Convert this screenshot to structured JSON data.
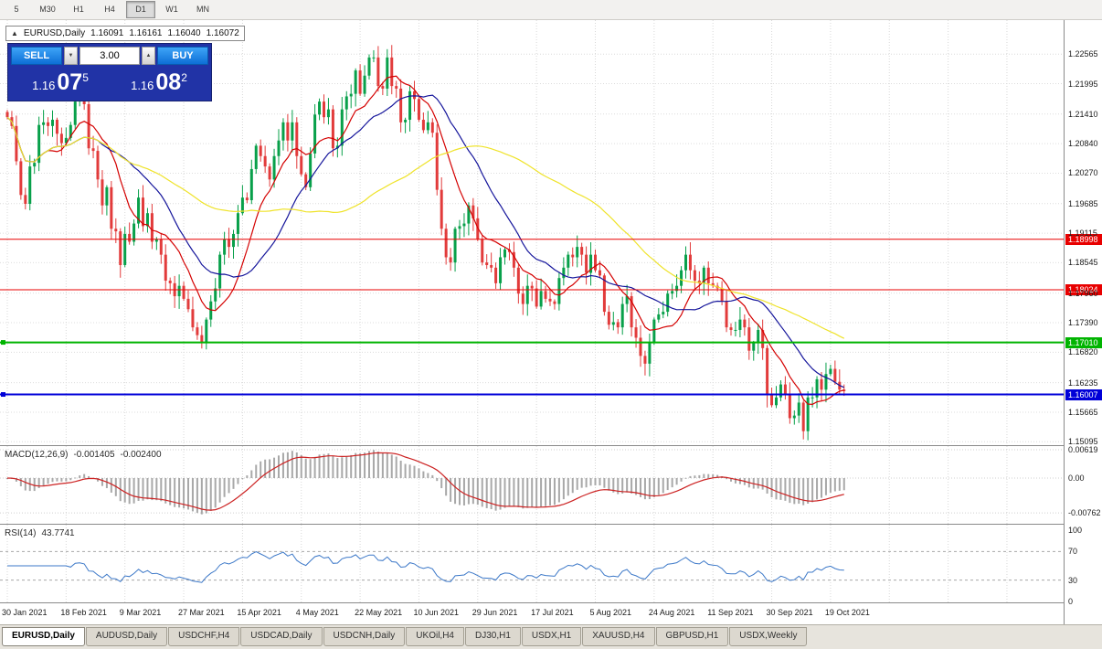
{
  "toolbar": {
    "timeframes": [
      "5",
      "M30",
      "H1",
      "H4",
      "D1",
      "W1",
      "MN"
    ],
    "active": "D1"
  },
  "chart_header": {
    "symbol_label": "EURUSD,Daily",
    "open": "1.16091",
    "high": "1.16161",
    "low": "1.16040",
    "close": "1.16072"
  },
  "icons": {
    "chart_collapse": "▲",
    "lot_down": "▼",
    "lot_up": "▲"
  },
  "trade_panel": {
    "sell_label": "SELL",
    "buy_label": "BUY",
    "lot_size": "3.00",
    "sell_price_prefix": "1.16",
    "sell_price_big": "07",
    "sell_price_sup": "5",
    "buy_price_prefix": "1.16",
    "buy_price_big": "08",
    "buy_price_sup": "2"
  },
  "price_axis": {
    "labels": [
      "1.22565",
      "1.21995",
      "1.21410",
      "1.20840",
      "1.20270",
      "1.19685",
      "1.19115",
      "1.18545",
      "1.17960",
      "1.17390",
      "1.16820",
      "1.16235",
      "1.15665",
      "1.15095"
    ]
  },
  "macd_panel": {
    "title": "MACD(12,26,9)",
    "value_main": "-0.001405",
    "value_signal": "-0.002400",
    "axis_labels": [
      "0.00619",
      "0.00",
      "-0.00762"
    ]
  },
  "rsi_panel": {
    "title": "RSI(14)",
    "value": "43.7741",
    "axis_labels": [
      "100",
      "70",
      "30",
      "0"
    ],
    "levels": [
      70,
      30
    ]
  },
  "date_axis": [
    "30 Jan 2021",
    "18 Feb 2021",
    "9 Mar 2021",
    "27 Mar 2021",
    "15 Apr 2021",
    "4 May 2021",
    "22 May 2021",
    "10 Jun 2021",
    "29 Jun 2021",
    "17 Jul 2021",
    "5 Aug 2021",
    "24 Aug 2021",
    "11 Sep 2021",
    "30 Sep 2021",
    "19 Oct 2021"
  ],
  "tabs": {
    "items": [
      "EURUSD,Daily",
      "AUDUSD,Daily",
      "USDCHF,H4",
      "USDCAD,Daily",
      "USDCNH,Daily",
      "UKOil,H4",
      "DJ30,H1",
      "USDX,H1",
      "XAUUSD,H4",
      "GBPUSD,H1",
      "USDX,Weekly"
    ],
    "active": "EURUSD,Daily"
  },
  "chart_data": {
    "type": "candlestick",
    "symbol": "EURUSD",
    "timeframe": "Daily",
    "title": "EURUSD,Daily 1.16091 1.16161 1.16040 1.16072",
    "ylim": [
      1.1503,
      1.2322
    ],
    "label_step_days": 13,
    "open_first": 1.2145,
    "closes": [
      1.2135,
      1.2118,
      1.205,
      1.1985,
      1.1968,
      1.204,
      1.2047,
      1.212,
      1.2125,
      1.2118,
      1.213,
      1.2103,
      1.2085,
      1.2095,
      1.212,
      1.2165,
      1.217,
      1.216,
      1.2075,
      1.207,
      1.2015,
      1.1965,
      1.2,
      1.192,
      1.1915,
      1.185,
      1.191,
      1.1895,
      1.193,
      1.198,
      1.1925,
      1.195,
      1.1895,
      1.19,
      1.187,
      1.182,
      1.1815,
      1.179,
      1.181,
      1.1785,
      1.1765,
      1.173,
      1.1715,
      1.17,
      1.1745,
      1.178,
      1.1805,
      1.187,
      1.19,
      1.1885,
      1.191,
      1.195,
      1.198,
      1.1975,
      1.2035,
      1.208,
      1.206,
      1.204,
      1.2015,
      1.206,
      1.209,
      1.2125,
      1.209,
      1.2125,
      1.206,
      1.2025,
      1.2,
      1.2065,
      1.214,
      1.2165,
      1.2135,
      1.215,
      1.2075,
      1.208,
      1.215,
      1.2175,
      1.218,
      1.2225,
      1.218,
      1.2215,
      1.225,
      1.225,
      1.2195,
      1.219,
      1.225,
      1.2195,
      1.219,
      1.2125,
      1.213,
      1.2185,
      1.217,
      1.213,
      1.211,
      1.2125,
      1.2105,
      1.1995,
      1.192,
      1.1865,
      1.1855,
      1.192,
      1.1925,
      1.193,
      1.1965,
      1.194,
      1.19,
      1.1855,
      1.185,
      1.1845,
      1.1815,
      1.1865,
      1.188,
      1.1875,
      1.1845,
      1.1795,
      1.1775,
      1.181,
      1.1805,
      1.177,
      1.18,
      1.1785,
      1.178,
      1.1775,
      1.1825,
      1.1845,
      1.187,
      1.1865,
      1.1885,
      1.187,
      1.1835,
      1.187,
      1.184,
      1.183,
      1.176,
      1.1735,
      1.174,
      1.173,
      1.1775,
      1.179,
      1.173,
      1.171,
      1.1675,
      1.166,
      1.17,
      1.1745,
      1.1755,
      1.176,
      1.1795,
      1.18,
      1.181,
      1.184,
      1.187,
      1.184,
      1.182,
      1.1815,
      1.1845,
      1.1815,
      1.181,
      1.1805,
      1.178,
      1.173,
      1.1725,
      1.1725,
      1.1745,
      1.173,
      1.1685,
      1.17,
      1.1725,
      1.169,
      1.16,
      1.158,
      1.1595,
      1.162,
      1.16,
      1.1555,
      1.156,
      1.1585,
      1.153,
      1.1595,
      1.1595,
      1.163,
      1.161,
      1.164,
      1.165,
      1.1625,
      1.161,
      1.1607
    ],
    "candle_up_color": "#08A04A",
    "candle_down_color": "#E23B3B",
    "moving_averages": [
      {
        "period": 10,
        "color": "#D40000"
      },
      {
        "period": 21,
        "color": "#15159B"
      },
      {
        "period": 55,
        "color": "#EFE32A"
      }
    ],
    "hlines": [
      {
        "value": 1.18998,
        "label": "1.18998",
        "color": "#E80000",
        "width": 1,
        "handle": false
      },
      {
        "value": 1.18024,
        "label": "1.18024",
        "color": "#E80000",
        "width": 1,
        "handle": false
      },
      {
        "value": 1.1701,
        "label": "1.17010",
        "color": "#00B400",
        "width": 2,
        "handle": true
      },
      {
        "value": 1.16007,
        "label": "1.16007",
        "color": "#0000D8",
        "width": 2,
        "handle": true
      }
    ],
    "indicators": {
      "macd": {
        "fast": 12,
        "slow": 26,
        "signal": 9,
        "value_main": -0.001405,
        "value_signal": -0.0024,
        "histogram_color": "#A8A8A8",
        "signal_color": "#CC2222"
      },
      "rsi": {
        "period": 14,
        "value": 43.7741,
        "line_color": "#3C78C8"
      }
    }
  }
}
